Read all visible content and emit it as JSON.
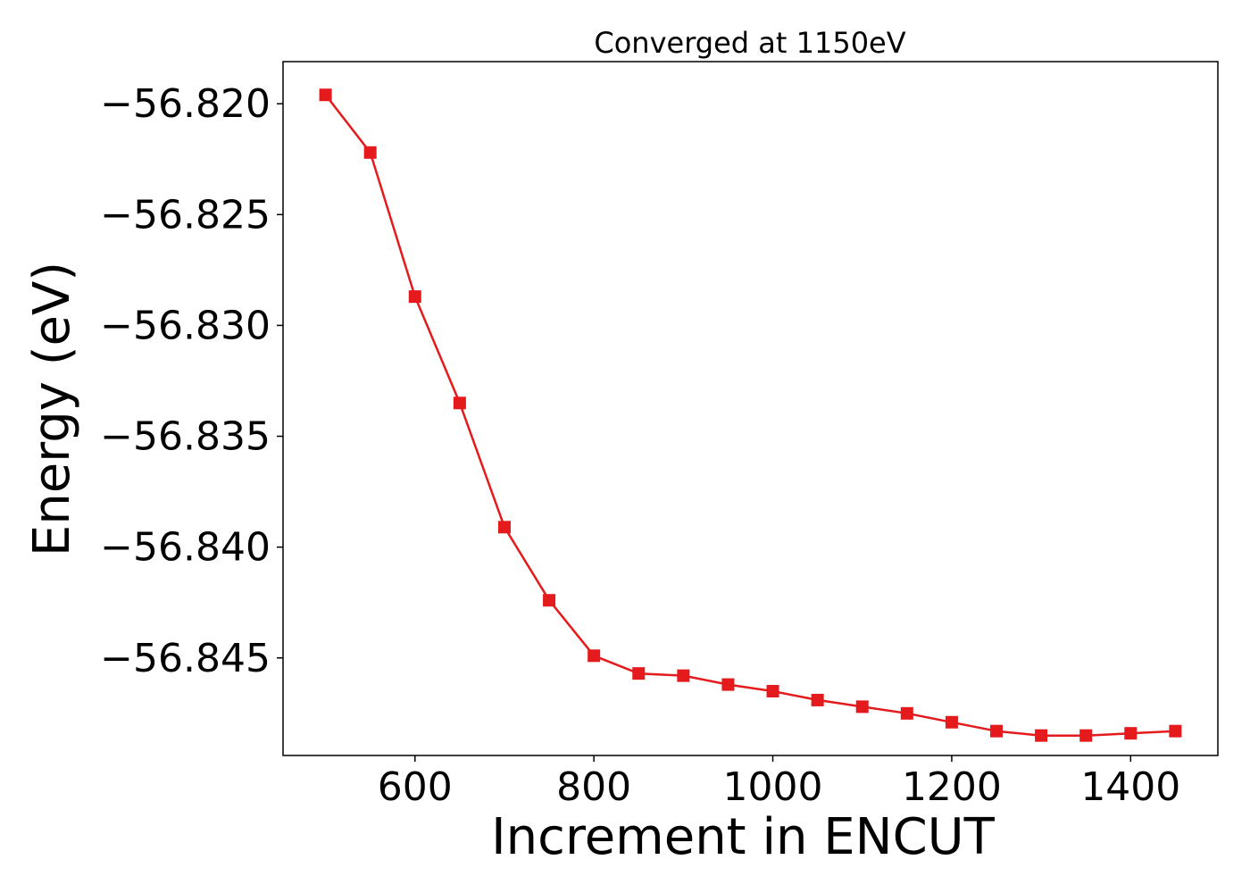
{
  "chart_data": {
    "type": "line",
    "title": "Converged at 1150eV",
    "xlabel": "Increment in ENCUT",
    "ylabel": "Energy (eV)",
    "xlim": [
      452.5,
      1497.5
    ],
    "ylim": [
      -56.8494,
      -56.8181
    ],
    "x_ticks": [
      600,
      800,
      1000,
      1200,
      1400
    ],
    "x_tick_labels": [
      "600",
      "800",
      "1000",
      "1200",
      "1400"
    ],
    "y_ticks": [
      -56.82,
      -56.825,
      -56.83,
      -56.835,
      -56.84,
      -56.845
    ],
    "y_tick_labels": [
      "−56.820",
      "−56.825",
      "−56.830",
      "−56.835",
      "−56.840",
      "−56.845"
    ],
    "grid": false,
    "series": [
      {
        "color": "#e41a1c",
        "marker": "square",
        "x": [
          500,
          550,
          600,
          650,
          700,
          750,
          800,
          850,
          900,
          950,
          1000,
          1050,
          1100,
          1150,
          1200,
          1250,
          1300,
          1350,
          1400,
          1450
        ],
        "y": [
          -56.8196,
          -56.8222,
          -56.8287,
          -56.8335,
          -56.8391,
          -56.8424,
          -56.8449,
          -56.8457,
          -56.8458,
          -56.8462,
          -56.8465,
          -56.8469,
          -56.8472,
          -56.8475,
          -56.8479,
          -56.8483,
          -56.8485,
          -56.8485,
          -56.8484,
          -56.8483
        ]
      }
    ]
  }
}
